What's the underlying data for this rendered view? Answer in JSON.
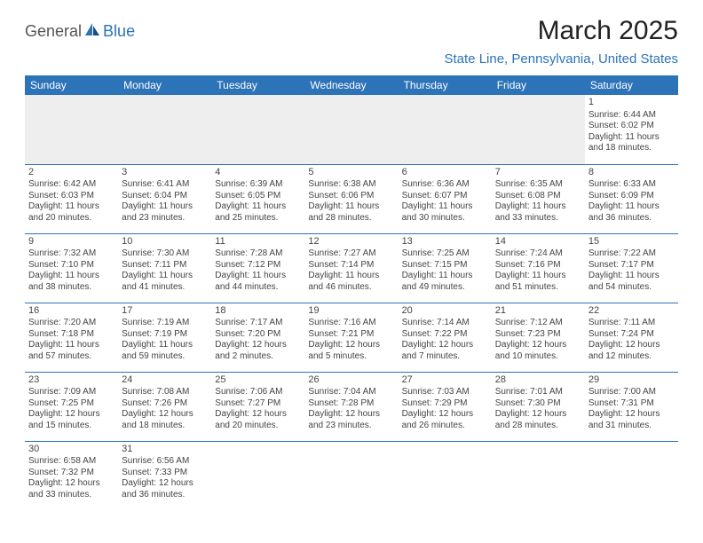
{
  "logo": {
    "part1": "General",
    "part2": "Blue"
  },
  "title": "March 2025",
  "location": "State Line, Pennsylvania, United States",
  "colors": {
    "header_bg": "#2d73b8",
    "header_text": "#ffffff",
    "accent": "#2d73b8",
    "blank_bg": "#eeeeee",
    "text": "#444444",
    "page_bg": "#ffffff"
  },
  "day_headers": [
    "Sunday",
    "Monday",
    "Tuesday",
    "Wednesday",
    "Thursday",
    "Friday",
    "Saturday"
  ],
  "weeks": [
    [
      null,
      null,
      null,
      null,
      null,
      null,
      {
        "n": "1",
        "sr": "6:44 AM",
        "ss": "6:02 PM",
        "dl": "11 hours and 18 minutes."
      }
    ],
    [
      {
        "n": "2",
        "sr": "6:42 AM",
        "ss": "6:03 PM",
        "dl": "11 hours and 20 minutes."
      },
      {
        "n": "3",
        "sr": "6:41 AM",
        "ss": "6:04 PM",
        "dl": "11 hours and 23 minutes."
      },
      {
        "n": "4",
        "sr": "6:39 AM",
        "ss": "6:05 PM",
        "dl": "11 hours and 25 minutes."
      },
      {
        "n": "5",
        "sr": "6:38 AM",
        "ss": "6:06 PM",
        "dl": "11 hours and 28 minutes."
      },
      {
        "n": "6",
        "sr": "6:36 AM",
        "ss": "6:07 PM",
        "dl": "11 hours and 30 minutes."
      },
      {
        "n": "7",
        "sr": "6:35 AM",
        "ss": "6:08 PM",
        "dl": "11 hours and 33 minutes."
      },
      {
        "n": "8",
        "sr": "6:33 AM",
        "ss": "6:09 PM",
        "dl": "11 hours and 36 minutes."
      }
    ],
    [
      {
        "n": "9",
        "sr": "7:32 AM",
        "ss": "7:10 PM",
        "dl": "11 hours and 38 minutes."
      },
      {
        "n": "10",
        "sr": "7:30 AM",
        "ss": "7:11 PM",
        "dl": "11 hours and 41 minutes."
      },
      {
        "n": "11",
        "sr": "7:28 AM",
        "ss": "7:12 PM",
        "dl": "11 hours and 44 minutes."
      },
      {
        "n": "12",
        "sr": "7:27 AM",
        "ss": "7:14 PM",
        "dl": "11 hours and 46 minutes."
      },
      {
        "n": "13",
        "sr": "7:25 AM",
        "ss": "7:15 PM",
        "dl": "11 hours and 49 minutes."
      },
      {
        "n": "14",
        "sr": "7:24 AM",
        "ss": "7:16 PM",
        "dl": "11 hours and 51 minutes."
      },
      {
        "n": "15",
        "sr": "7:22 AM",
        "ss": "7:17 PM",
        "dl": "11 hours and 54 minutes."
      }
    ],
    [
      {
        "n": "16",
        "sr": "7:20 AM",
        "ss": "7:18 PM",
        "dl": "11 hours and 57 minutes."
      },
      {
        "n": "17",
        "sr": "7:19 AM",
        "ss": "7:19 PM",
        "dl": "11 hours and 59 minutes."
      },
      {
        "n": "18",
        "sr": "7:17 AM",
        "ss": "7:20 PM",
        "dl": "12 hours and 2 minutes."
      },
      {
        "n": "19",
        "sr": "7:16 AM",
        "ss": "7:21 PM",
        "dl": "12 hours and 5 minutes."
      },
      {
        "n": "20",
        "sr": "7:14 AM",
        "ss": "7:22 PM",
        "dl": "12 hours and 7 minutes."
      },
      {
        "n": "21",
        "sr": "7:12 AM",
        "ss": "7:23 PM",
        "dl": "12 hours and 10 minutes."
      },
      {
        "n": "22",
        "sr": "7:11 AM",
        "ss": "7:24 PM",
        "dl": "12 hours and 12 minutes."
      }
    ],
    [
      {
        "n": "23",
        "sr": "7:09 AM",
        "ss": "7:25 PM",
        "dl": "12 hours and 15 minutes."
      },
      {
        "n": "24",
        "sr": "7:08 AM",
        "ss": "7:26 PM",
        "dl": "12 hours and 18 minutes."
      },
      {
        "n": "25",
        "sr": "7:06 AM",
        "ss": "7:27 PM",
        "dl": "12 hours and 20 minutes."
      },
      {
        "n": "26",
        "sr": "7:04 AM",
        "ss": "7:28 PM",
        "dl": "12 hours and 23 minutes."
      },
      {
        "n": "27",
        "sr": "7:03 AM",
        "ss": "7:29 PM",
        "dl": "12 hours and 26 minutes."
      },
      {
        "n": "28",
        "sr": "7:01 AM",
        "ss": "7:30 PM",
        "dl": "12 hours and 28 minutes."
      },
      {
        "n": "29",
        "sr": "7:00 AM",
        "ss": "7:31 PM",
        "dl": "12 hours and 31 minutes."
      }
    ],
    [
      {
        "n": "30",
        "sr": "6:58 AM",
        "ss": "7:32 PM",
        "dl": "12 hours and 33 minutes."
      },
      {
        "n": "31",
        "sr": "6:56 AM",
        "ss": "7:33 PM",
        "dl": "12 hours and 36 minutes."
      },
      null,
      null,
      null,
      null,
      null
    ]
  ],
  "labels": {
    "sunrise": "Sunrise:",
    "sunset": "Sunset:",
    "daylight": "Daylight:"
  }
}
